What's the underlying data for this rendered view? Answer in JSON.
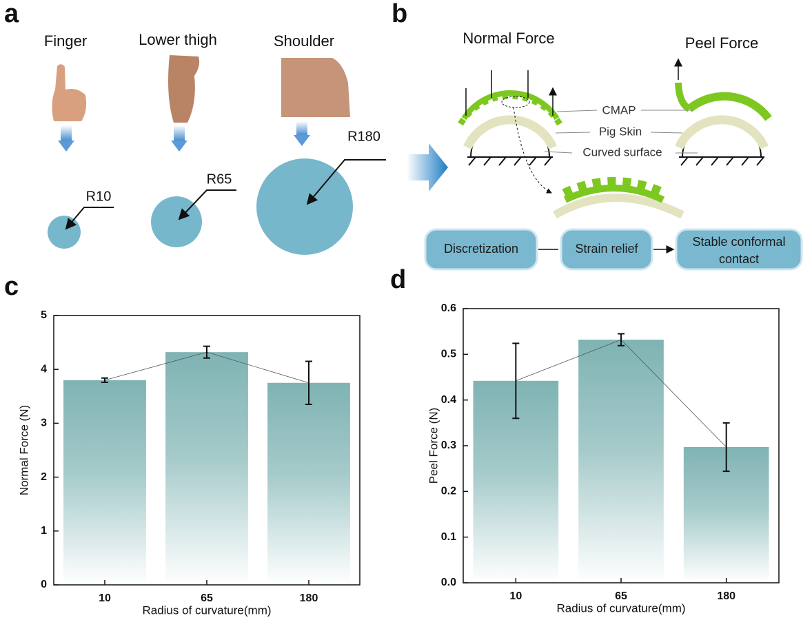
{
  "panel_labels": [
    "a",
    "b",
    "c",
    "d"
  ],
  "panel_a": {
    "body_sites": [
      "Finger",
      "Lower thigh",
      "Shoulder"
    ],
    "radii": [
      "R10",
      "R65",
      "R180"
    ]
  },
  "panel_b": {
    "titles": [
      "Normal Force",
      "Peel Force"
    ],
    "layers": [
      "CMAP",
      "Pig Skin",
      "Curved surface"
    ],
    "flow": [
      [
        "Discretization"
      ],
      [
        "Strain relief"
      ],
      [
        "Stable conformal",
        "contact"
      ]
    ]
  },
  "chart_data": [
    {
      "type": "bar",
      "xlabel": "Radius of curvature(mm)",
      "ylabel": "Normal Force (N)",
      "categories": [
        "10",
        "65",
        "180"
      ],
      "values": [
        3.8,
        4.32,
        3.75
      ],
      "errors": [
        0.04,
        0.11,
        0.4
      ],
      "color": "#7fb3b3",
      "ylim": [
        0,
        5
      ],
      "yticks": [
        0,
        1,
        2,
        3,
        4,
        5
      ],
      "connect_line": true
    },
    {
      "type": "bar",
      "xlabel": "Radius of curvature(mm)",
      "ylabel": "Peel Force (N)",
      "categories": [
        "10",
        "65",
        "180"
      ],
      "values": [
        0.442,
        0.532,
        0.297
      ],
      "errors": [
        0.082,
        0.013,
        0.053
      ],
      "color": "#7fb3b3",
      "ylim": [
        0,
        0.6
      ],
      "yticks": [
        {
          "value": 0,
          "label": "0.0"
        },
        0.1,
        0.2,
        0.3,
        0.4,
        0.5,
        0.6
      ],
      "connect_line": true
    }
  ]
}
